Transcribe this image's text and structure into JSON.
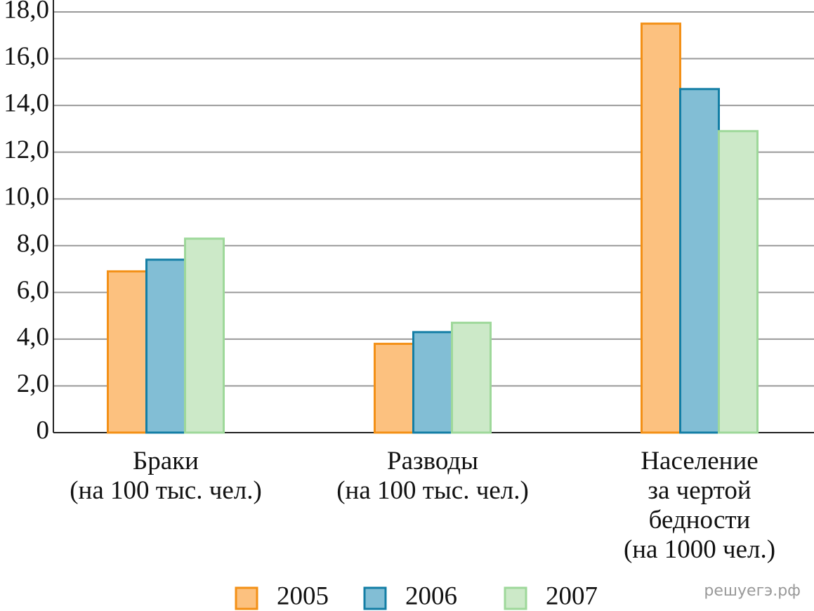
{
  "chart_data": {
    "type": "bar",
    "categories": [
      [
        "Браки",
        "(на 100 тыс. чел.)"
      ],
      [
        "Разводы",
        "(на 100 тыс. чел.)"
      ],
      [
        "Население",
        "за чертой",
        "бедности",
        "(на 1000 чел.)"
      ]
    ],
    "series": [
      {
        "name": "2005",
        "color": "#fcc17f",
        "edge": "#f39016",
        "values": [
          6.9,
          3.8,
          17.5
        ]
      },
      {
        "name": "2006",
        "color": "#82bed5",
        "edge": "#137ea5",
        "values": [
          7.4,
          4.3,
          14.7
        ]
      },
      {
        "name": "2007",
        "color": "#cce9c8",
        "edge": "#9ed89a",
        "values": [
          8.3,
          4.7,
          12.9
        ]
      }
    ],
    "ylim": [
      0,
      18
    ],
    "yticks": [
      0,
      {
        "value": 2,
        "label": "2,0"
      },
      {
        "value": 4,
        "label": "4,0"
      },
      {
        "value": 6,
        "label": "6,0"
      },
      {
        "value": 8,
        "label": "8,0"
      },
      {
        "value": 10,
        "label": "10,0"
      },
      {
        "value": 12,
        "label": "12,0"
      },
      {
        "value": 14,
        "label": "14,0"
      },
      {
        "value": 16,
        "label": "16,0"
      },
      {
        "value": 18,
        "label": "18,0"
      }
    ],
    "grid": true,
    "watermark": "решуегэ.рф"
  }
}
